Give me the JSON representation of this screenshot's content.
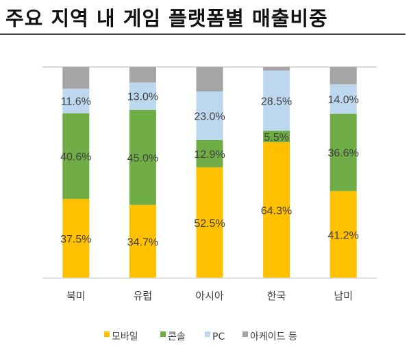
{
  "title": "주요 지역 내 게임 플랫폼별 매출비중",
  "chart_data": {
    "type": "bar",
    "stacked": true,
    "title": "주요 지역 내 게임 플랫폼별 매출비중",
    "xlabel": "",
    "ylabel": "",
    "ylim": [
      0,
      100
    ],
    "unit": "%",
    "grid": false,
    "legend": "bottom",
    "categories": [
      "북미",
      "유럽",
      "아시아",
      "한국",
      "남미"
    ],
    "series": [
      {
        "name": "모바일",
        "color": "#FFC000",
        "values": [
          37.5,
          34.7,
          52.5,
          64.3,
          41.2
        ],
        "labels": [
          "37.5%",
          "34.7%",
          "52.5%",
          "64.3%",
          "41.2%"
        ]
      },
      {
        "name": "콘솔",
        "color": "#70AD47",
        "values": [
          40.6,
          45.0,
          12.9,
          5.5,
          36.6
        ],
        "labels": [
          "40.6%",
          "45.0%",
          "12.9%",
          "5.5%",
          "36.6%"
        ]
      },
      {
        "name": "PC",
        "color": "#BDD7EE",
        "values": [
          11.6,
          13.0,
          23.0,
          28.5,
          14.0
        ],
        "labels": [
          "11.6%",
          "13.0%",
          "23.0%",
          "28.5%",
          "14.0%"
        ]
      },
      {
        "name": "아케이드 등",
        "color": "#A5A5A5",
        "values": [
          10.3,
          7.3,
          11.6,
          1.7,
          8.2
        ],
        "labels": null
      }
    ]
  }
}
